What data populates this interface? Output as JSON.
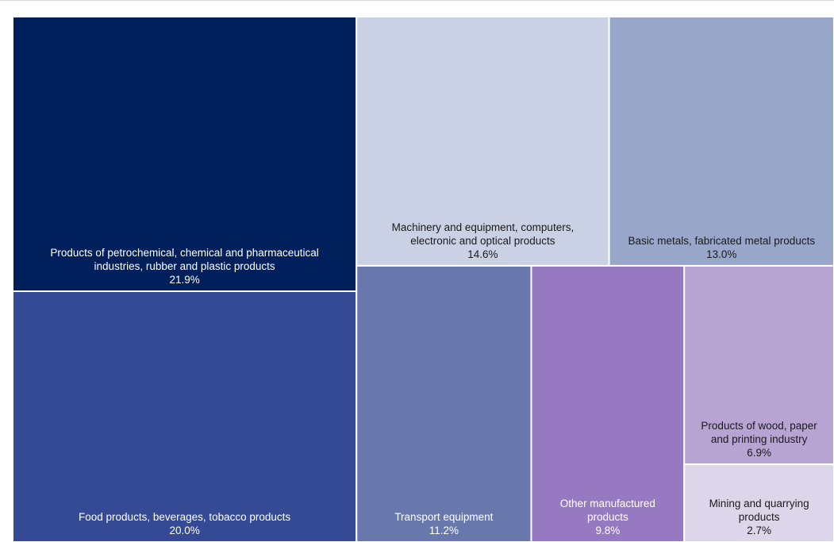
{
  "chart_data": {
    "type": "treemap",
    "colors": {
      "tile_border": "#ffffff",
      "text_light": "#ffffff",
      "text_dark": "#1a1a1a"
    },
    "items": [
      {
        "label_lines": [
          "Products of petrochemical, chemical and pharmaceutical",
          "industries, rubber and plastic products"
        ],
        "value": 21.9,
        "value_label": "21.9%",
        "color": "#00205b",
        "text_color": "#ffffff"
      },
      {
        "label_lines": [
          "Food products, beverages, tobacco products"
        ],
        "value": 20.0,
        "value_label": "20.0%",
        "color": "#344a95",
        "text_color": "#ffffff"
      },
      {
        "label_lines": [
          "Machinery and equipment, computers,",
          "electronic and optical products"
        ],
        "value": 14.6,
        "value_label": "14.6%",
        "color": "#cbd1e4",
        "text_color": "#1a1a1a"
      },
      {
        "label_lines": [
          "Basic metals, fabricated metal products"
        ],
        "value": 13.0,
        "value_label": "13.0%",
        "color": "#98a6c9",
        "text_color": "#1a1a1a"
      },
      {
        "label_lines": [
          "Transport equipment"
        ],
        "value": 11.2,
        "value_label": "11.2%",
        "color": "#6878ad",
        "text_color": "#ffffff"
      },
      {
        "label_lines": [
          "Other manufactured",
          "products"
        ],
        "value": 9.8,
        "value_label": "9.8%",
        "color": "#9779c1",
        "text_color": "#ffffff"
      },
      {
        "label_lines": [
          "Products of wood, paper",
          "and printing industry"
        ],
        "value": 6.9,
        "value_label": "6.9%",
        "color": "#b8a4d3",
        "text_color": "#1a1a1a"
      },
      {
        "label_lines": [
          "Mining and quarrying",
          "products"
        ],
        "value": 2.7,
        "value_label": "2.7%",
        "color": "#ddd5ea",
        "text_color": "#1a1a1a"
      }
    ]
  }
}
